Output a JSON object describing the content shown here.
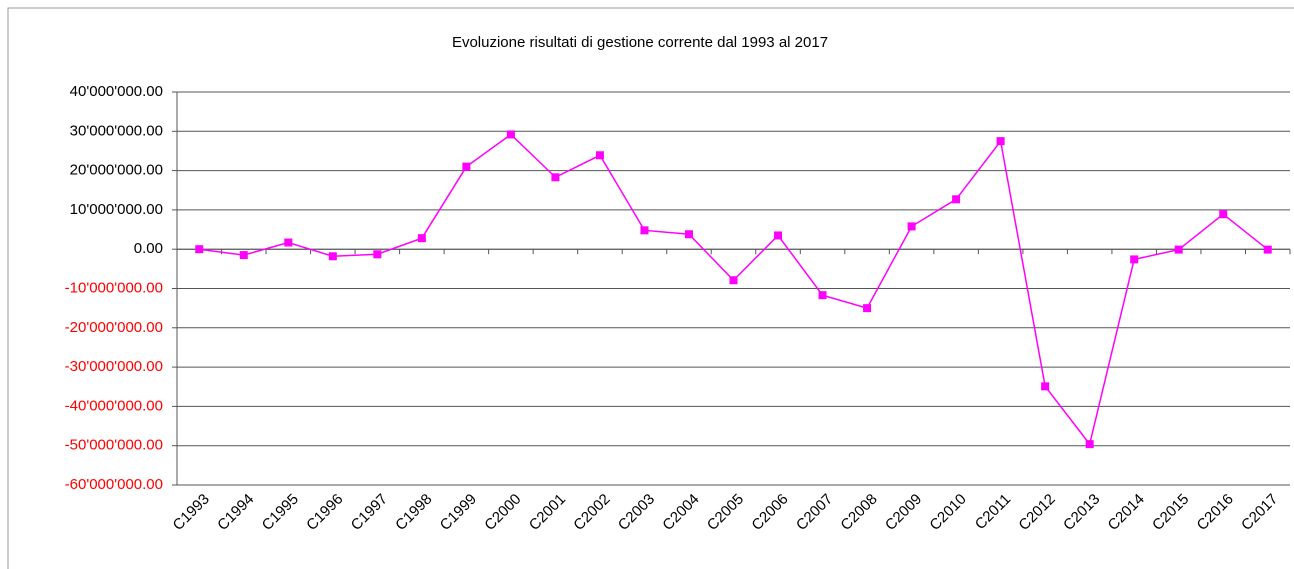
{
  "chart_data": {
    "type": "line",
    "title": "Evoluzione risultati di gestione corrente dal 1993 al 2017",
    "categories": [
      "C1993",
      "C1994",
      "C1995",
      "C1996",
      "C1997",
      "C1998",
      "C1999",
      "C2000",
      "C2001",
      "C2002",
      "C2003",
      "C2004",
      "C2005",
      "C2006",
      "C2007",
      "C2008",
      "C2009",
      "C2010",
      "C2011",
      "C2012",
      "C2013",
      "C2014",
      "C2015",
      "C2016",
      "C2017"
    ],
    "series": [
      {
        "color": "#ff00ff",
        "values": [
          0,
          -1500000,
          1700000,
          -1800000,
          -1300000,
          2800000,
          21000000,
          29200000,
          18300000,
          23900000,
          4800000,
          3800000,
          -7900000,
          3500000,
          -11700000,
          -15000000,
          5800000,
          12700000,
          27500000,
          -34900000,
          -49600000,
          -2600000,
          -100000,
          8900000,
          -100000
        ]
      }
    ],
    "ylim": [
      -60000000,
      40000000
    ],
    "yticks": [
      {
        "value": 40000000,
        "label": "40'000'000.00"
      },
      {
        "value": 30000000,
        "label": "30'000'000.00"
      },
      {
        "value": 20000000,
        "label": "20'000'000.00"
      },
      {
        "value": 10000000,
        "label": "10'000'000.00"
      },
      {
        "value": 0,
        "label": "0.00"
      },
      {
        "value": -10000000,
        "label": "-10'000'000.00"
      },
      {
        "value": -20000000,
        "label": "-20'000'000.00"
      },
      {
        "value": -30000000,
        "label": "-30'000'000.00"
      },
      {
        "value": -40000000,
        "label": "-40'000'000.00"
      },
      {
        "value": -50000000,
        "label": "-50'000'000.00"
      },
      {
        "value": -60000000,
        "label": "-60'000'000.00"
      }
    ],
    "grid": true,
    "negative_label_color": "#ff0000"
  }
}
